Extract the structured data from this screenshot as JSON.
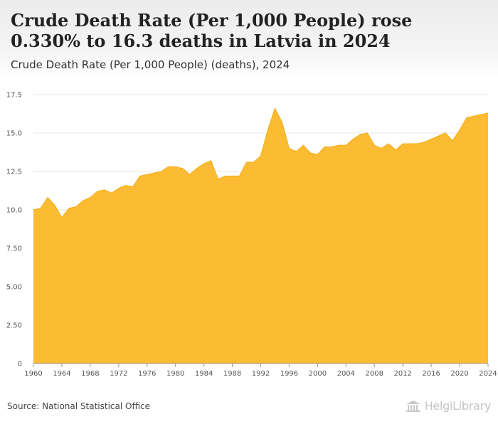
{
  "title": "Crude Death Rate (Per 1,000 People) rose 0.330% to 16.3 deaths in Latvia in 2024",
  "subtitle": "Crude Death Rate (Per 1,000 People) (deaths), 2024",
  "source": "Source: National Statistical Office",
  "logo": {
    "brand": "HelgiLibrary",
    "icon": "library-columns-icon",
    "color": "#c4c4c4"
  },
  "colors": {
    "area": "#fbbc33",
    "area_stroke": "#f5b020",
    "grid": "#e6e6e6",
    "axis": "#999999"
  },
  "chart_data": {
    "type": "area",
    "title": "Crude Death Rate (Per 1,000 People) rose 0.330% to 16.3 deaths in Latvia in 2024",
    "subtitle": "Crude Death Rate (Per 1,000 People) (deaths), 2024",
    "xlabel": "",
    "ylabel": "",
    "ylim": [
      0,
      17.5
    ],
    "xlim": [
      1960,
      2024
    ],
    "grid": true,
    "legend": "none",
    "y_ticks": [
      {
        "value": 0,
        "label": "0"
      },
      {
        "value": 2.5,
        "label": "2.50"
      },
      {
        "value": 5,
        "label": "5.00"
      },
      {
        "value": 7.5,
        "label": "7.50"
      },
      {
        "value": 10,
        "label": "10.0"
      },
      {
        "value": 12.5,
        "label": "12.5"
      },
      {
        "value": 15,
        "label": "15.0"
      },
      {
        "value": 17.5,
        "label": "17.5"
      }
    ],
    "x_ticks": [
      {
        "value": 1960,
        "label": "1960"
      },
      {
        "value": 1964,
        "label": "1964"
      },
      {
        "value": 1968,
        "label": "1968"
      },
      {
        "value": 1972,
        "label": "1972"
      },
      {
        "value": 1976,
        "label": "1976"
      },
      {
        "value": 1980,
        "label": "1980"
      },
      {
        "value": 1984,
        "label": "1984"
      },
      {
        "value": 1988,
        "label": "1988"
      },
      {
        "value": 1992,
        "label": "1992"
      },
      {
        "value": 1996,
        "label": "1996"
      },
      {
        "value": 2000,
        "label": "2000"
      },
      {
        "value": 2004,
        "label": "2004"
      },
      {
        "value": 2008,
        "label": "2008"
      },
      {
        "value": 2012,
        "label": "2012"
      },
      {
        "value": 2016,
        "label": "2016"
      },
      {
        "value": 2020,
        "label": "2020"
      },
      {
        "value": 2024,
        "label": "2024"
      }
    ],
    "series": [
      {
        "name": "Crude Death Rate (Per 1,000 People)",
        "x": [
          1960,
          1961,
          1962,
          1963,
          1964,
          1965,
          1966,
          1967,
          1968,
          1969,
          1970,
          1971,
          1972,
          1973,
          1974,
          1975,
          1976,
          1977,
          1978,
          1979,
          1980,
          1981,
          1982,
          1983,
          1984,
          1985,
          1986,
          1987,
          1988,
          1989,
          1990,
          1991,
          1992,
          1993,
          1994,
          1995,
          1996,
          1997,
          1998,
          1999,
          2000,
          2001,
          2002,
          2003,
          2004,
          2005,
          2006,
          2007,
          2008,
          2009,
          2010,
          2011,
          2012,
          2013,
          2014,
          2015,
          2016,
          2017,
          2018,
          2019,
          2020,
          2021,
          2022,
          2023,
          2024
        ],
        "values": [
          10.0,
          10.1,
          10.8,
          10.3,
          9.5,
          10.1,
          10.2,
          10.6,
          10.8,
          11.2,
          11.3,
          11.1,
          11.4,
          11.6,
          11.5,
          12.2,
          12.3,
          12.4,
          12.5,
          12.8,
          12.8,
          12.7,
          12.3,
          12.7,
          13.0,
          13.2,
          12.0,
          12.2,
          12.2,
          12.2,
          13.1,
          13.1,
          13.5,
          15.2,
          16.6,
          15.7,
          14.0,
          13.8,
          14.2,
          13.7,
          13.6,
          14.1,
          14.1,
          14.2,
          14.2,
          14.6,
          14.9,
          15.0,
          14.2,
          14.0,
          14.3,
          13.9,
          14.3,
          14.3,
          14.3,
          14.4,
          14.6,
          14.8,
          15.0,
          14.5,
          15.2,
          16.0,
          16.1,
          16.2,
          16.3
        ]
      }
    ]
  }
}
